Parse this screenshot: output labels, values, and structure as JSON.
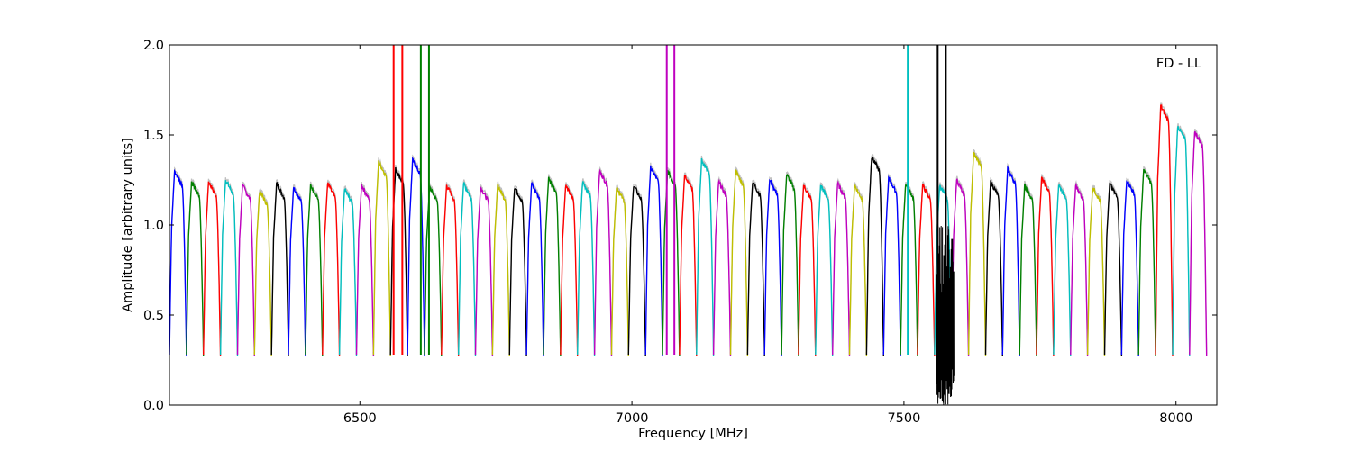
{
  "chart_data": {
    "type": "line",
    "annotation": "FD - LL",
    "xlabel": "Frequency [MHz]",
    "ylabel": "Amplitude [arbitrary units]",
    "xlim": [
      6150,
      8075
    ],
    "ylim": [
      0,
      2.0
    ],
    "xticks": [
      6500,
      7000,
      7500,
      8000
    ],
    "xtick_labels": [
      "6500",
      "7000",
      "7500",
      "8000"
    ],
    "yticks": [
      0.0,
      0.5,
      1.0,
      1.5,
      2.0
    ],
    "ytick_labels": [
      "0.0",
      "0.5",
      "1.0",
      "1.5",
      "2.0"
    ],
    "grid": false,
    "channel_width_mhz": 31.25,
    "color_cycle": [
      "#0000ff",
      "#008000",
      "#ff0000",
      "#00bfbf",
      "#bf00bf",
      "#bfbf00",
      "#000000"
    ],
    "background_trace_color": "#bfbfbf",
    "bandpass_peak_levels": [
      1.3,
      1.24,
      1.24,
      1.25,
      1.22,
      1.19,
      1.23,
      1.21,
      1.22,
      1.23,
      1.2,
      1.22,
      1.35,
      1.31,
      1.36,
      1.21,
      1.22,
      1.23,
      1.21,
      1.22,
      1.21,
      1.23,
      1.26,
      1.22,
      1.24,
      1.3,
      1.21,
      1.22,
      1.32,
      1.3,
      1.28,
      1.36,
      1.24,
      1.3,
      1.24,
      1.25,
      1.28,
      1.22,
      1.22,
      1.23,
      1.22,
      1.38,
      1.26,
      1.23,
      1.22,
      1.22,
      1.25,
      1.4,
      1.24,
      1.31,
      1.22,
      1.26,
      1.22,
      1.22,
      1.21,
      1.23,
      1.25,
      1.31,
      1.66,
      1.55,
      1.52
    ],
    "rfi_spikes": [
      {
        "freq": 6562,
        "color": "#ff0000"
      },
      {
        "freq": 6578,
        "color": "#ff0000"
      },
      {
        "freq": 6612,
        "color": "#008000"
      },
      {
        "freq": 6627,
        "color": "#008000"
      },
      {
        "freq": 7064,
        "color": "#bf00bf"
      },
      {
        "freq": 7078,
        "color": "#bf00bf"
      },
      {
        "freq": 7507,
        "color": "#00bfbf"
      },
      {
        "freq": 7562,
        "color": "#000000"
      },
      {
        "freq": 7577,
        "color": "#000000"
      }
    ],
    "noise_region_mhz": [
      7560,
      7592
    ]
  }
}
